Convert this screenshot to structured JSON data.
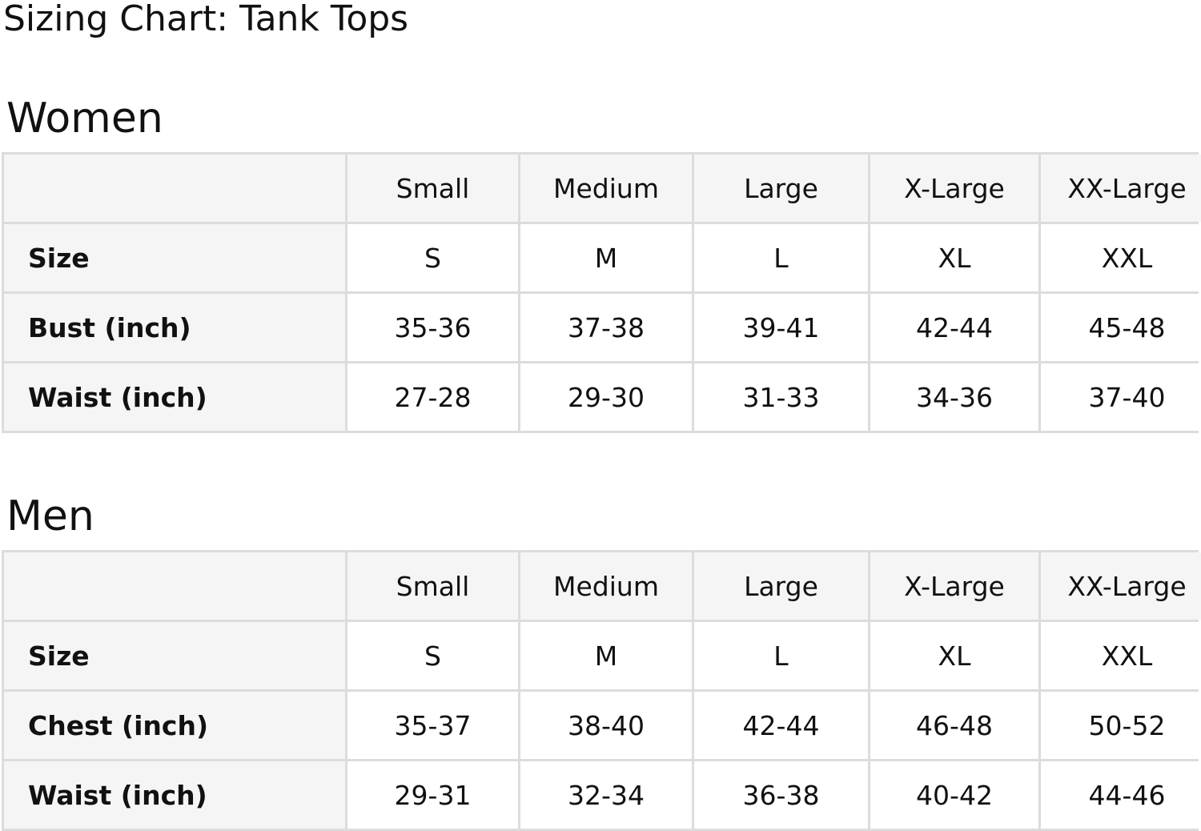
{
  "title": "Sizing Chart: Tank Tops",
  "columns": [
    "Small",
    "Medium",
    "Large",
    "X-Large",
    "XX-Large"
  ],
  "tables": [
    {
      "heading": "Women",
      "rows": [
        {
          "label": "Size",
          "values": [
            "S",
            "M",
            "L",
            "XL",
            "XXL"
          ]
        },
        {
          "label": "Bust (inch)",
          "values": [
            "35-36",
            "37-38",
            "39-41",
            "42-44",
            "45-48"
          ]
        },
        {
          "label": "Waist (inch)",
          "values": [
            "27-28",
            "29-30",
            "31-33",
            "34-36",
            "37-40"
          ]
        }
      ]
    },
    {
      "heading": "Men",
      "rows": [
        {
          "label": "Size",
          "values": [
            "S",
            "M",
            "L",
            "XL",
            "XXL"
          ]
        },
        {
          "label": "Chest (inch)",
          "values": [
            "35-37",
            "38-40",
            "42-44",
            "46-48",
            "50-52"
          ]
        },
        {
          "label": "Waist (inch)",
          "values": [
            "29-31",
            "32-34",
            "36-38",
            "40-42",
            "44-46"
          ]
        }
      ]
    }
  ]
}
